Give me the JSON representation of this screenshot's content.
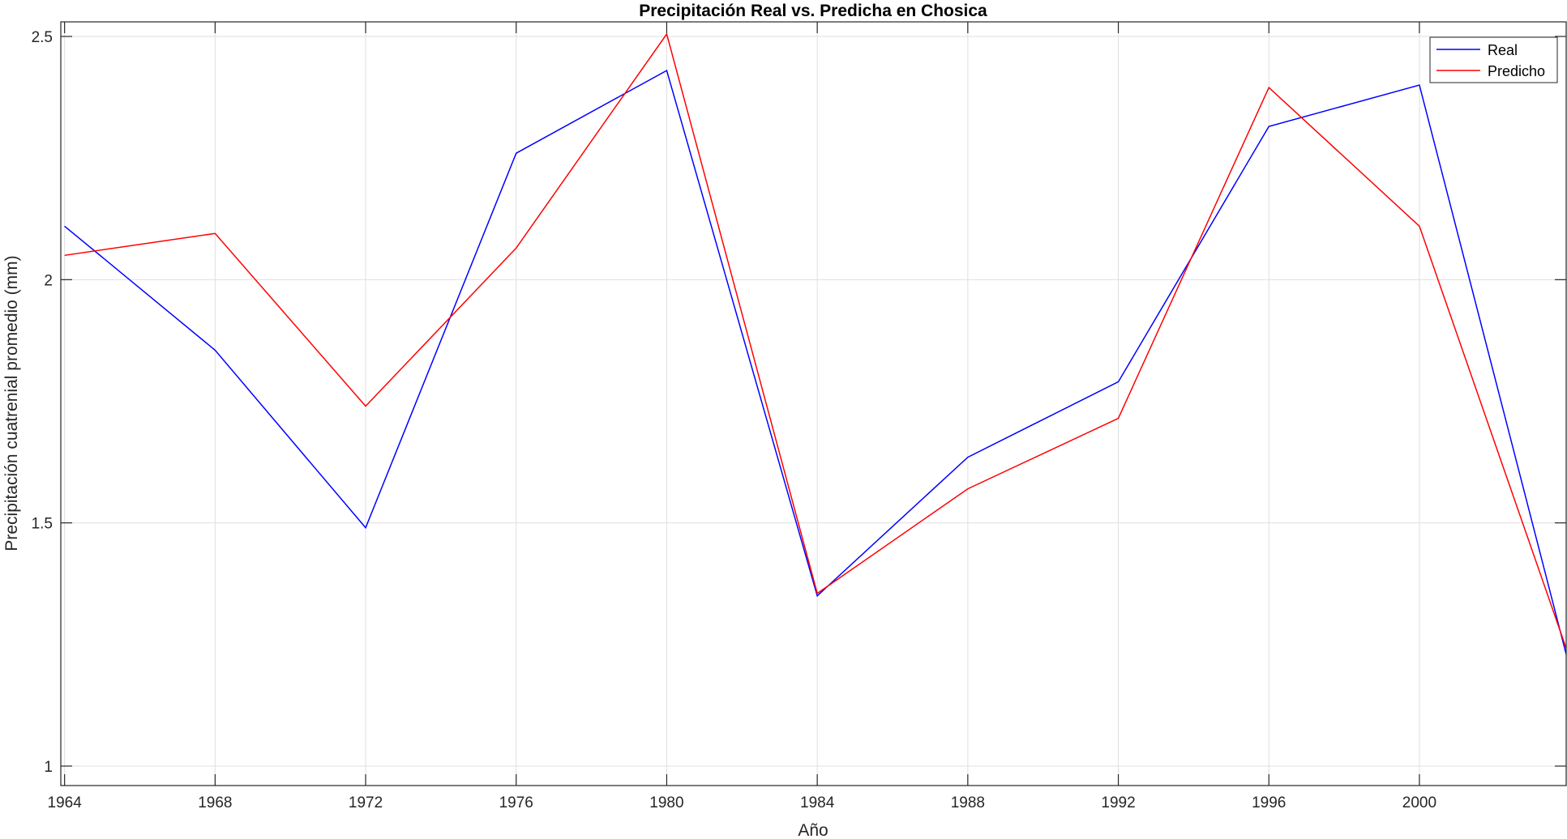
{
  "chart_data": {
    "type": "line",
    "title": "Precipitación Real vs. Predicha en Chosica",
    "xlabel": "Año",
    "ylabel": "Precipitación cuatrenial promedio (mm)",
    "x": [
      1964,
      1968,
      1972,
      1976,
      1980,
      1984,
      1988,
      1992,
      1996,
      2000,
      2004
    ],
    "xlim": [
      1963.9,
      2003.9
    ],
    "ylim": [
      0.96,
      2.53
    ],
    "xticks": [
      1964,
      1968,
      1972,
      1976,
      1980,
      1984,
      1988,
      1992,
      1996,
      2000
    ],
    "xtick_labels": [
      "1964",
      "1968",
      "1972",
      "1976",
      "1980",
      "1984",
      "1988",
      "1992",
      "1996",
      "2000"
    ],
    "yticks": [
      1,
      1.5,
      2,
      2.5
    ],
    "ytick_labels": [
      "1",
      "1.5",
      "2",
      "2.5"
    ],
    "grid": true,
    "legend_position": "top-right",
    "series": [
      {
        "name": "Real",
        "color": "#0000ff",
        "values": [
          2.11,
          1.855,
          1.49,
          2.26,
          2.43,
          1.35,
          1.635,
          1.79,
          2.315,
          2.4,
          1.2
        ]
      },
      {
        "name": "Predicho",
        "color": "#ff0000",
        "values": [
          2.05,
          2.095,
          1.74,
          2.065,
          2.505,
          1.355,
          1.57,
          1.715,
          2.395,
          2.11,
          1.22
        ]
      }
    ]
  }
}
